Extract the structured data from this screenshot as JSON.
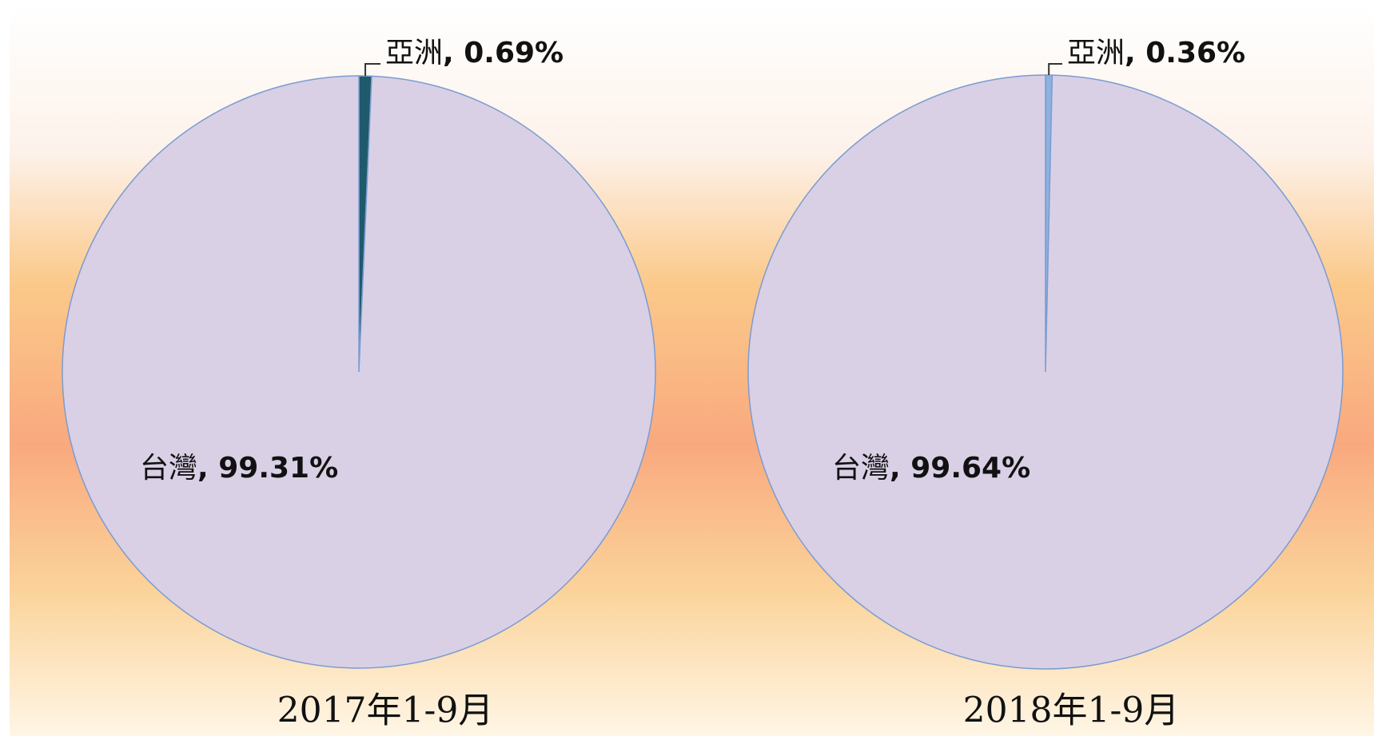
{
  "chart_data": [
    {
      "type": "pie",
      "title": "2017年1-9月",
      "categories": [
        "亞洲",
        "台灣"
      ],
      "values": [
        0.69,
        99.31
      ],
      "value_labels": [
        "0.69%",
        "99.31%"
      ],
      "colors": [
        "#1f5a6b",
        "#d9d0e6"
      ],
      "label_separator": ", "
    },
    {
      "type": "pie",
      "title": "2018年1-9月",
      "categories": [
        "亞洲",
        "台灣"
      ],
      "values": [
        0.36,
        99.64
      ],
      "value_labels": [
        "0.36%",
        "99.64%"
      ],
      "colors": [
        "#8eb2e0",
        "#d9d0e6"
      ],
      "label_separator": ", "
    }
  ]
}
